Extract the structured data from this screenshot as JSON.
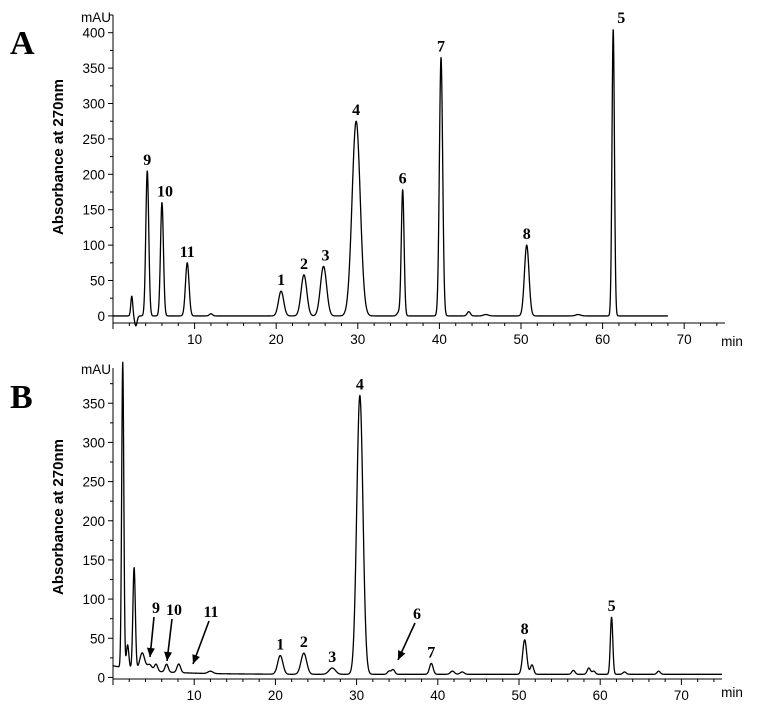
{
  "chart_data": [
    {
      "panel": "A",
      "type": "line",
      "ylabel": "Absorbance at 270nm",
      "y_unit": "mAU",
      "x_unit": "min",
      "xlim": [
        0,
        75
      ],
      "ylim": [
        -10,
        425
      ],
      "x_ticks": [
        10,
        20,
        30,
        40,
        50,
        60,
        70
      ],
      "y_ticks": [
        0,
        50,
        100,
        150,
        200,
        250,
        300,
        350,
        400
      ],
      "x_end": 68,
      "peaks": [
        {
          "label": "9",
          "x": 4.2,
          "height": 205,
          "width": 0.18
        },
        {
          "label": "10",
          "x": 6.0,
          "height": 160,
          "width": 0.18
        },
        {
          "label": "11",
          "x": 9.1,
          "height": 75,
          "width": 0.22
        },
        {
          "label": "1",
          "x": 20.6,
          "height": 35,
          "width": 0.32
        },
        {
          "label": "2",
          "x": 23.4,
          "height": 58,
          "width": 0.35
        },
        {
          "label": "3",
          "x": 25.8,
          "height": 70,
          "width": 0.38
        },
        {
          "label": "4",
          "x": 29.8,
          "height": 275,
          "width": 0.5
        },
        {
          "label": "6",
          "x": 35.5,
          "height": 178,
          "width": 0.17
        },
        {
          "label": "7",
          "x": 40.2,
          "height": 365,
          "width": 0.2
        },
        {
          "label": "8",
          "x": 50.7,
          "height": 100,
          "width": 0.28
        },
        {
          "label": "5",
          "x": 61.3,
          "height": 405,
          "width": 0.15
        }
      ],
      "minor_peaks": [
        {
          "x": 2.3,
          "height": 28,
          "width": 0.12
        },
        {
          "x": 2.8,
          "height": -14,
          "width": 0.15
        },
        {
          "x": 12.0,
          "height": 3,
          "width": 0.2
        },
        {
          "x": 35.0,
          "height": 5,
          "width": 0.2
        },
        {
          "x": 43.6,
          "height": 6,
          "width": 0.2
        },
        {
          "x": 45.7,
          "height": 2,
          "width": 0.3
        },
        {
          "x": 57.0,
          "height": 2,
          "width": 0.3
        }
      ]
    },
    {
      "panel": "B",
      "type": "line",
      "ylabel": "Absorbance at 270nm",
      "y_unit": "mAU",
      "x_unit": "min",
      "xlim": [
        0,
        75
      ],
      "ylim": [
        -2,
        395
      ],
      "x_ticks": [
        10,
        20,
        30,
        40,
        50,
        60,
        70
      ],
      "y_ticks": [
        0,
        50,
        100,
        150,
        200,
        250,
        300,
        350
      ],
      "x_end": 75,
      "baseline": 4,
      "peaks": [
        {
          "label": "9",
          "x": 5.3,
          "height": 9,
          "width": 0.2
        },
        {
          "label": "10",
          "x": 6.6,
          "height": 10,
          "width": 0.2
        },
        {
          "label": "11",
          "x": 8.1,
          "height": 11,
          "width": 0.22
        },
        {
          "label": "1",
          "x": 20.6,
          "height": 24,
          "width": 0.32
        },
        {
          "label": "2",
          "x": 23.5,
          "height": 27,
          "width": 0.35
        },
        {
          "label": "3",
          "x": 27.0,
          "height": 8,
          "width": 0.4
        },
        {
          "label": "4",
          "x": 30.4,
          "height": 356,
          "width": 0.38
        },
        {
          "label": "6",
          "x": 34.5,
          "height": 6,
          "width": 0.2
        },
        {
          "label": "7",
          "x": 39.2,
          "height": 14,
          "width": 0.22
        },
        {
          "label": "8",
          "x": 50.7,
          "height": 44,
          "width": 0.25
        },
        {
          "label": "5",
          "x": 61.4,
          "height": 73,
          "width": 0.15
        }
      ],
      "minor_peaks": [
        {
          "x": 1.2,
          "height": 390,
          "width": 0.13
        },
        {
          "x": 1.8,
          "height": 30,
          "width": 0.15
        },
        {
          "x": 2.6,
          "height": 130,
          "width": 0.15
        },
        {
          "x": 3.6,
          "height": 22,
          "width": 0.3
        },
        {
          "x": 4.5,
          "height": 8,
          "width": 0.3
        },
        {
          "x": 12.0,
          "height": 3,
          "width": 0.3
        },
        {
          "x": 34.0,
          "height": 4,
          "width": 0.2
        },
        {
          "x": 41.8,
          "height": 4,
          "width": 0.25
        },
        {
          "x": 43.0,
          "height": 3,
          "width": 0.25
        },
        {
          "x": 51.6,
          "height": 12,
          "width": 0.2
        },
        {
          "x": 56.7,
          "height": 5,
          "width": 0.2
        },
        {
          "x": 58.6,
          "height": 8,
          "width": 0.2
        },
        {
          "x": 59.2,
          "height": 4,
          "width": 0.2
        },
        {
          "x": 63.0,
          "height": 3,
          "width": 0.2
        },
        {
          "x": 67.2,
          "height": 4,
          "width": 0.2
        }
      ]
    }
  ]
}
